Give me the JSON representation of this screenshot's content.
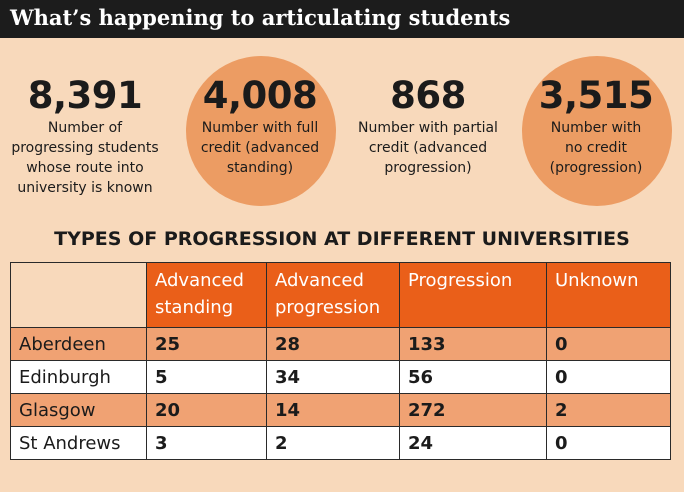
{
  "title": "What’s happening to articulating students",
  "stats": [
    {
      "number": "8,391",
      "line1": "Number of",
      "line2": "progressing students",
      "line3": "whose route into",
      "line4": "university is known"
    },
    {
      "number": "4,008",
      "line1": "Number with full",
      "line2": "credit (advanced",
      "line3": "standing)",
      "line4": ""
    },
    {
      "number": "868",
      "line1": "Number with partial",
      "line2": "credit (advanced",
      "line3": "progression)",
      "line4": ""
    },
    {
      "number": "3,515",
      "line1": "Number with",
      "line2": "no credit",
      "line3": "(progression)",
      "line4": ""
    }
  ],
  "colors": {
    "circle": "#ec9c63",
    "header": "#ea5f19",
    "band": "#f0a273",
    "background": "#f8d9bb"
  },
  "table": {
    "heading": "TYPES OF PROGRESSION AT DIFFERENT UNIVERSITIES",
    "columns": [
      {
        "line1": "Advanced",
        "line2": "standing"
      },
      {
        "line1": "Advanced",
        "line2": "progression"
      },
      {
        "line1": "Progression",
        "line2": ""
      },
      {
        "line1": "Unknown",
        "line2": ""
      }
    ],
    "rows": [
      {
        "name": "Aberdeen",
        "values": [
          "25",
          "28",
          "133",
          "0"
        ]
      },
      {
        "name": "Edinburgh",
        "values": [
          "5",
          "34",
          "56",
          "0"
        ]
      },
      {
        "name": "Glasgow",
        "values": [
          "20",
          "14",
          "272",
          "2"
        ]
      },
      {
        "name": "St Andrews",
        "values": [
          "3",
          "2",
          "24",
          "0"
        ]
      }
    ]
  }
}
